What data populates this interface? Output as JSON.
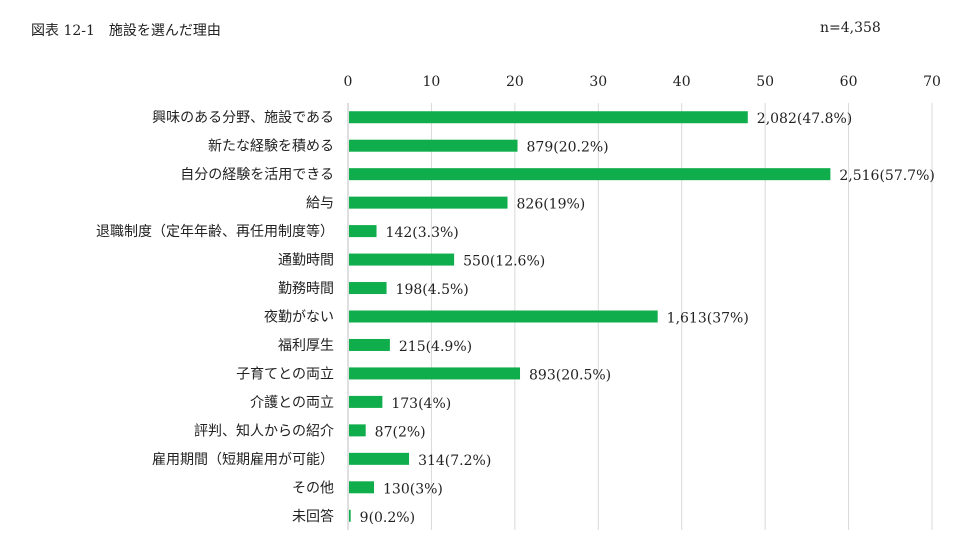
{
  "figure": {
    "title": "図表 12-1　施設を選んだ理由",
    "n_label": "n=4,358"
  },
  "chart_data": {
    "type": "bar",
    "orientation": "horizontal",
    "xlim": [
      0,
      70
    ],
    "xticks": [
      0,
      10,
      20,
      30,
      40,
      50,
      60,
      70
    ],
    "grid": true,
    "color": "#0fad4b",
    "categories": [
      "興味のある分野、施設である",
      "新たな経験を積める",
      "自分の経験を活用できる",
      "給与",
      "退職制度（定年年齢、再任用制度等）",
      "通勤時間",
      "勤務時間",
      "夜勤がない",
      "福利厚生",
      "子育てとの両立",
      "介護との両立",
      "評判、知人からの紹介",
      "雇用期間（短期雇用が可能）",
      "その他",
      "未回答"
    ],
    "values": [
      47.8,
      20.2,
      57.7,
      19,
      3.3,
      12.6,
      4.5,
      37,
      4.9,
      20.5,
      4,
      2,
      7.2,
      3,
      0.2
    ],
    "data_labels": [
      "2,082(47.8%)",
      "879(20.2%)",
      "2,516(57.7%)",
      "826(19%)",
      "142(3.3%)",
      "550(12.6%)",
      "198(4.5%)",
      "1,613(37%)",
      "215(4.9%)",
      "893(20.5%)",
      "173(4%)",
      "87(2%)",
      "314(7.2%)",
      "130(3%)",
      "9(0.2%)"
    ]
  }
}
